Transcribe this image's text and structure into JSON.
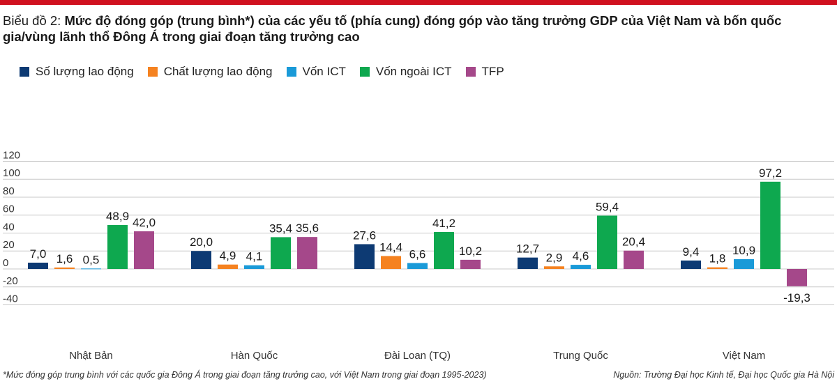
{
  "colors": {
    "top_bar": "#d0111f",
    "grid": "#c8c8c8",
    "axis_text": "#333333"
  },
  "title": {
    "label": "Biểu đồ 2:",
    "text": "Mức độ đóng góp (trung bình*) của các yếu tố (phía cung) đóng góp vào tăng trưởng GDP của Việt Nam và bốn quốc gia/vùng lãnh thổ Đông Á trong giai đoạn tăng trưởng cao"
  },
  "footnote": "*Mức đóng góp trung bình với các quốc gia Đông Á trong giai đoạn tăng trưởng cao, với Việt Nam trong giai đoạn 1995-2023)",
  "source": "Nguồn: Trường Đại học Kinh tế, Đại học Quốc gia Hà Nội",
  "chart_data": {
    "type": "bar",
    "title": "Mức độ đóng góp (trung bình*) của các yếu tố (phía cung) đóng góp vào tăng trưởng GDP của Việt Nam và bốn quốc gia/vùng lãnh thổ Đông Á trong giai đoạn tăng trưởng cao",
    "xlabel": "",
    "ylabel": "",
    "ylim": [
      -40,
      120
    ],
    "yticks": [
      120,
      100,
      80,
      60,
      40,
      20,
      0,
      -20,
      -40
    ],
    "ytick_labels": [
      "120",
      "100",
      "80",
      "60",
      "40",
      "20",
      "0",
      "-20",
      "-40"
    ],
    "grid": true,
    "legend_position": "top-left",
    "categories": [
      "Nhật Bản",
      "Hàn Quốc",
      "Đài Loan (TQ)",
      "Trung Quốc",
      "Việt Nam"
    ],
    "series": [
      {
        "name": "Số lượng lao động",
        "color": "#0d3a73",
        "values": [
          7.0,
          20.0,
          27.6,
          12.7,
          9.4
        ],
        "labels": [
          "7,0",
          "20,0",
          "27,6",
          "12,7",
          "9,4"
        ]
      },
      {
        "name": "Chất lượng lao động",
        "color": "#f58220",
        "values": [
          1.6,
          4.9,
          14.4,
          2.9,
          1.8
        ],
        "labels": [
          "1,6",
          "4,9",
          "14,4",
          "2,9",
          "1,8"
        ]
      },
      {
        "name": "Vốn ICT",
        "color": "#1a9ad8",
        "values": [
          0.5,
          4.1,
          6.6,
          4.6,
          10.9
        ],
        "labels": [
          "0,5",
          "4,1",
          "6,6",
          "4,6",
          "10,9"
        ]
      },
      {
        "name": "Vốn ngoài ICT",
        "color": "#0ea84f",
        "values": [
          48.9,
          35.4,
          41.2,
          59.4,
          97.2
        ],
        "labels": [
          "48,9",
          "35,4",
          "41,2",
          "59,4",
          "97,2"
        ]
      },
      {
        "name": "TFP",
        "color": "#a5488a",
        "values": [
          42.0,
          35.6,
          10.2,
          20.4,
          -19.3
        ],
        "labels": [
          "42,0",
          "35,6",
          "10,2",
          "20,4",
          "-19,3"
        ]
      }
    ]
  }
}
